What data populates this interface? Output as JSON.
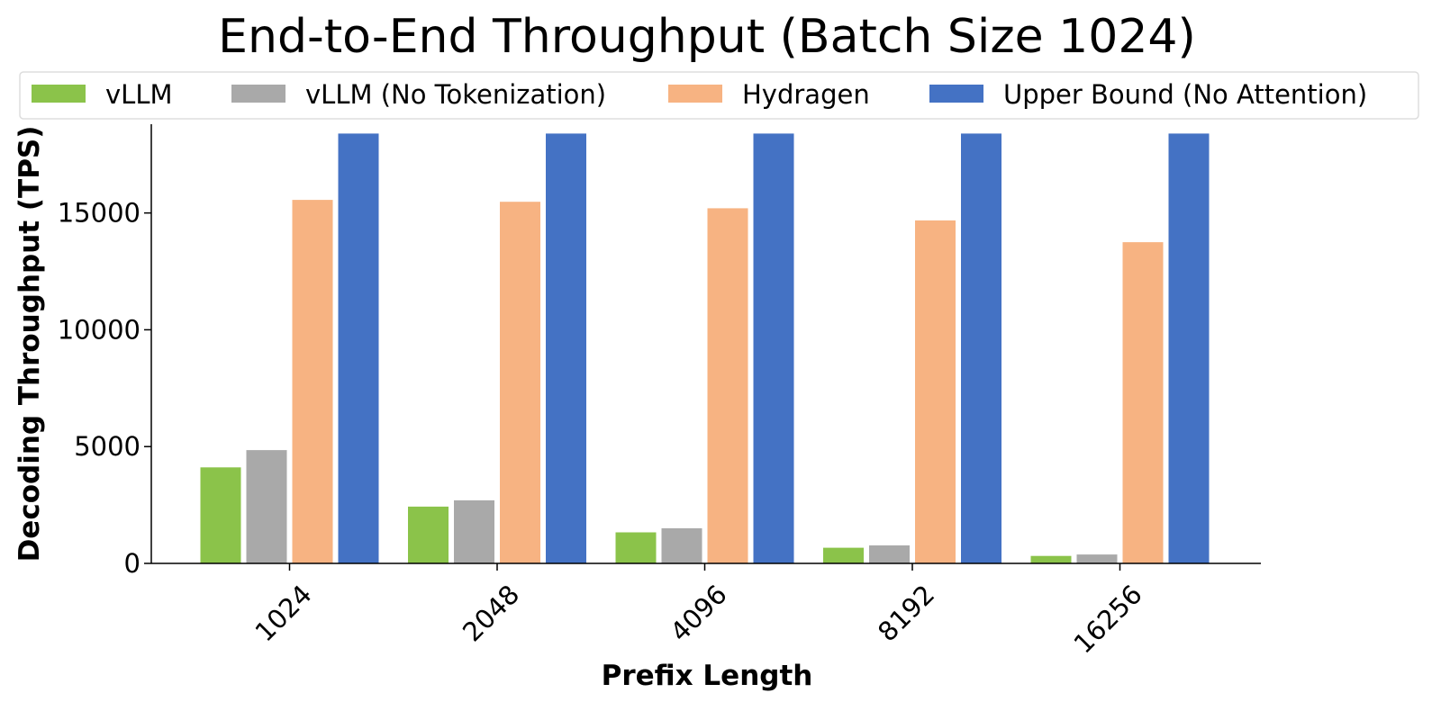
{
  "chart_data": {
    "type": "bar",
    "title": "End-to-End Throughput (Batch Size 1024)",
    "xlabel": "Prefix Length",
    "ylabel": "Decoding Throughput (TPS)",
    "ylim": [
      0,
      18800
    ],
    "yticks": [
      0,
      5000,
      10000,
      15000
    ],
    "categories": [
      "1024",
      "2048",
      "4096",
      "8192",
      "16256"
    ],
    "legend_position": "top",
    "grid": false,
    "series": [
      {
        "name": "vLLM",
        "color": "#8bc34a",
        "values": [
          4130,
          2450,
          1350,
          690,
          340
        ]
      },
      {
        "name": "vLLM (No Tokenization)",
        "color": "#a9a9a9",
        "values": [
          4870,
          2720,
          1520,
          790,
          400
        ]
      },
      {
        "name": "Hydragen",
        "color": "#f7b382",
        "values": [
          15580,
          15500,
          15220,
          14700,
          13770
        ]
      },
      {
        "name": "Upper Bound (No Attention)",
        "color": "#4472c4",
        "values": [
          18420,
          18420,
          18420,
          18420,
          18420
        ]
      }
    ]
  }
}
